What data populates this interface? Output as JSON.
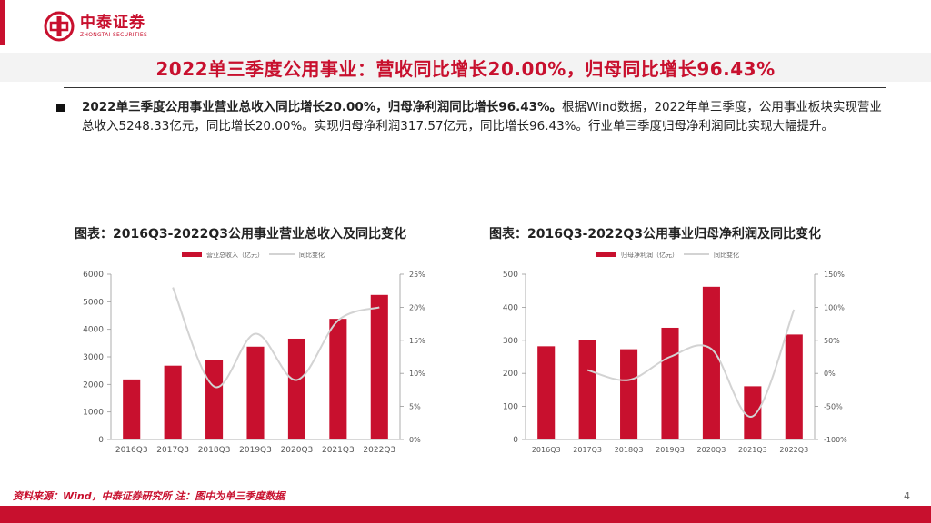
{
  "header": {
    "logo_cn": "中泰证券",
    "logo_en": "ZHONGTAI SECURITIES",
    "title": "2022单三季度公用事业：营收同比增长20.00%，归母同比增长96.43%"
  },
  "bullet": {
    "bold_part": "2022单三季度公用事业营业总收入同比增长20.00%，归母净利润同比增长96.43%。",
    "text_part": "根据Wind数据，2022年单三季度，公用事业板块实现营业总收入5248.33亿元，同比增长20.00%。实现归母净利润317.57亿元，同比增长96.43%。行业单三季度归母净利润同比实现大幅提升。"
  },
  "chart_data": [
    {
      "type": "bar",
      "title": "图表：2016Q3-2022Q3公用事业营业总收入及同比变化",
      "categories": [
        "2016Q3",
        "2017Q3",
        "2018Q3",
        "2019Q3",
        "2020Q3",
        "2021Q3",
        "2022Q3"
      ],
      "series": [
        {
          "name": "营业总收入（亿元）",
          "kind": "bar",
          "axis": "left",
          "values": [
            2180,
            2680,
            2900,
            3370,
            3660,
            4380,
            5248.33
          ]
        },
        {
          "name": "同比变化",
          "kind": "line",
          "axis": "right",
          "values": [
            null,
            23,
            8,
            16,
            9,
            18,
            20
          ]
        }
      ],
      "left_axis": {
        "min": 0,
        "max": 6000,
        "ticks": [
          0,
          1000,
          2000,
          3000,
          4000,
          5000,
          6000
        ]
      },
      "right_axis": {
        "min": 0,
        "max": 25,
        "ticks": [
          "0%",
          "5%",
          "10%",
          "15%",
          "20%",
          "25%"
        ]
      },
      "colors": {
        "bar": "#c8102e",
        "line": "#d3d3d3"
      }
    },
    {
      "type": "bar",
      "title": "图表：2016Q3-2022Q3公用事业归母净利润及同比变化",
      "categories": [
        "2016Q3",
        "2017Q3",
        "2018Q3",
        "2019Q3",
        "2020Q3",
        "2021Q3",
        "2022Q3"
      ],
      "series": [
        {
          "name": "归母净利润（亿元）",
          "kind": "bar",
          "axis": "left",
          "values": [
            282,
            300,
            273,
            338,
            462,
            161,
            317.57
          ]
        },
        {
          "name": "同比变化",
          "kind": "line",
          "axis": "right",
          "values": [
            null,
            5,
            -10,
            25,
            37,
            -65,
            96.43
          ]
        }
      ],
      "left_axis": {
        "min": 0,
        "max": 500,
        "ticks": [
          0,
          100,
          200,
          300,
          400,
          500
        ]
      },
      "right_axis": {
        "min": -100,
        "max": 150,
        "ticks": [
          "-100%",
          "-50%",
          "0%",
          "50%",
          "100%",
          "150%"
        ]
      },
      "colors": {
        "bar": "#c8102e",
        "line": "#d3d3d3"
      }
    }
  ],
  "footer": {
    "source": "资料来源：Wind，中泰证券研究所 注：图中为单三季度数据",
    "page": "4"
  }
}
